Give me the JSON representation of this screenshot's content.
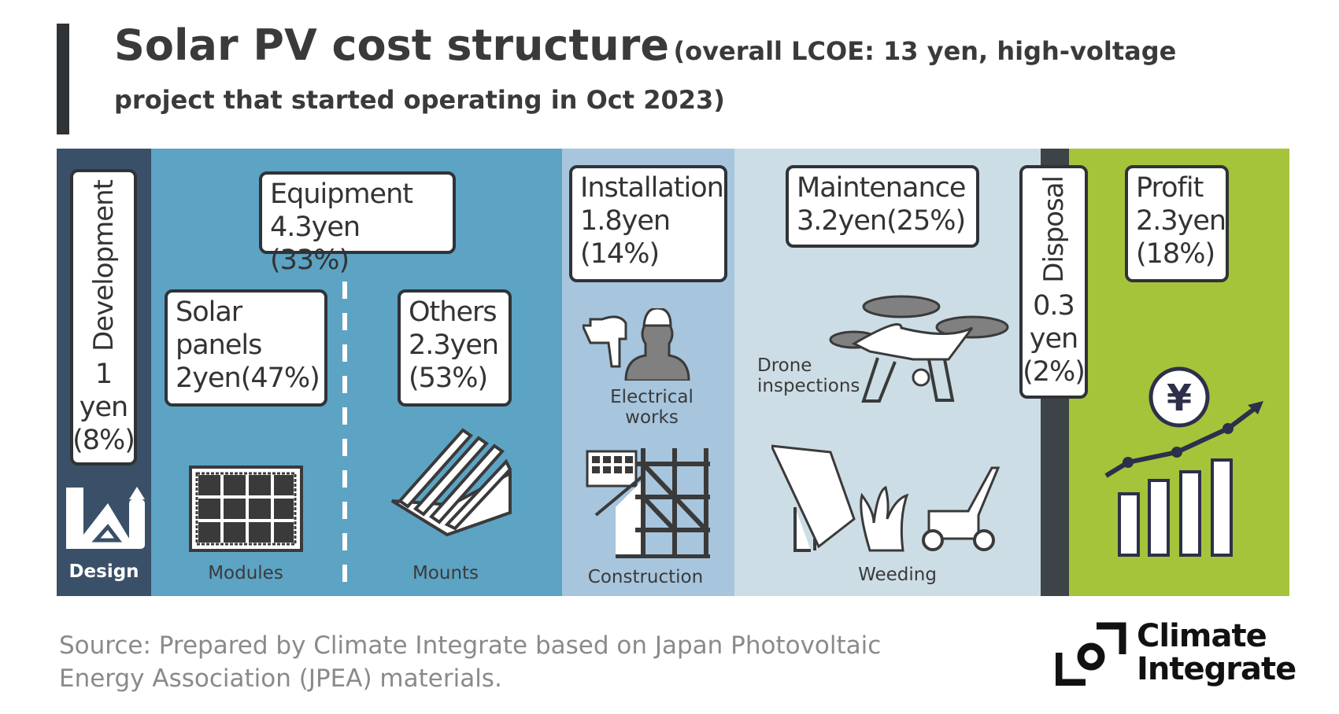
{
  "title": {
    "main": "Solar PV cost structure",
    "sub": "(overall LCOE: 13 yen, high-voltage project that started operating in Oct 2023)"
  },
  "columns": {
    "development": {
      "label": "Development",
      "value": "1 yen",
      "value_line1": "1",
      "value_line2": "yen",
      "pct": "(8%)",
      "icon_label": "Design",
      "color": "#3a5068"
    },
    "equipment": {
      "label": "Equipment",
      "value": "4.3yen (33%)",
      "color": "#5da3c4",
      "solar_panels": {
        "line1": "Solar",
        "line2": "panels",
        "line3": "2yen(47%)",
        "icon_label": "Modules"
      },
      "others": {
        "line1": "Others",
        "line2": "2.3yen",
        "line3": "(53%)",
        "icon_label": "Mounts"
      }
    },
    "installation": {
      "label": "Installation",
      "value": "1.8yen",
      "pct": "(14%)",
      "icon_label_1": "Electrical works",
      "icon_label_2": "Construction",
      "color": "#a7c5dd"
    },
    "maintenance": {
      "label": "Maintenance",
      "value": "3.2yen(25%)",
      "icon_label_1": "Drone inspections",
      "icon_label_2": "Weeding",
      "color": "#cddde6"
    },
    "disposal": {
      "label": "Disposal",
      "value_line1": "0.3",
      "value_line2": "yen",
      "pct": "(2%)",
      "color": "#3e4347"
    },
    "profit": {
      "label": "Profit",
      "value": "2.3yen",
      "pct": "(18%)",
      "color": "#a5c43a"
    }
  },
  "source": {
    "line1": "Source: Prepared by Climate Integrate based on Japan Photovoltaic",
    "line2": "Energy Association (JPEA) materials."
  },
  "logo": {
    "line1": "Climate",
    "line2": "Integrate"
  }
}
